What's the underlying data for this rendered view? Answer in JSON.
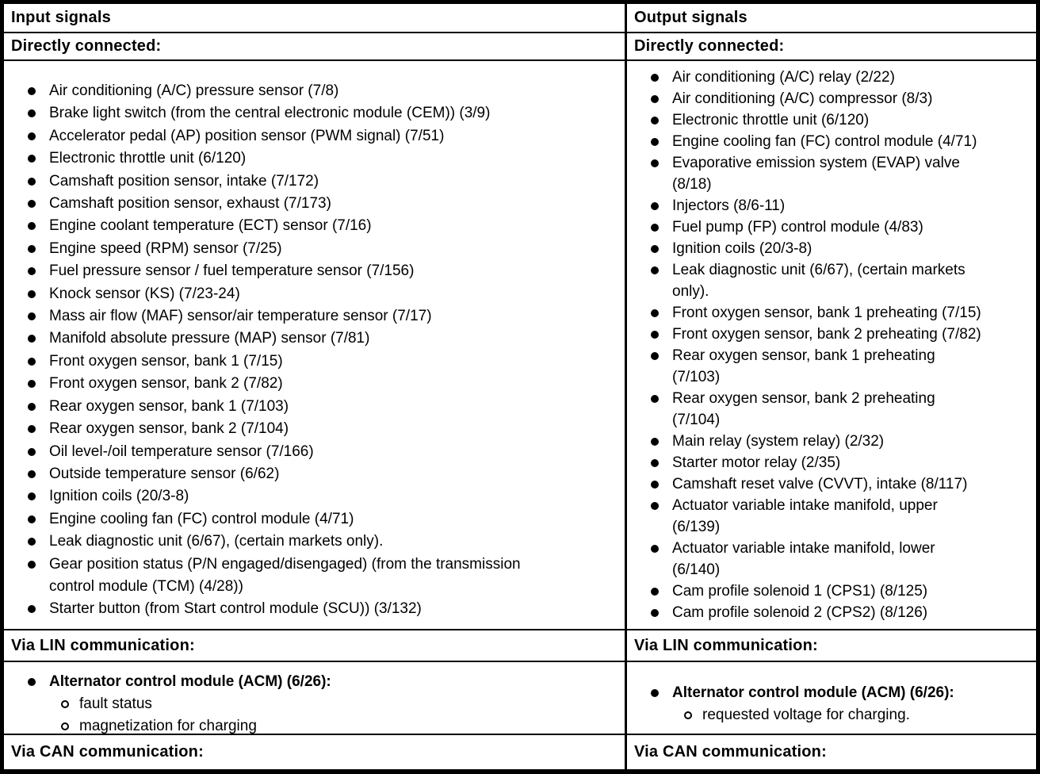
{
  "colors": {
    "text": "#000000",
    "background": "#ffffff",
    "border": "#000000"
  },
  "columns": [
    {
      "header": "Input signals",
      "sections": [
        {
          "heading": "Directly connected:",
          "items": [
            {
              "lines": [
                "Air conditioning (A/C) pressure sensor (7/8)"
              ]
            },
            {
              "lines": [
                "Brake light switch (from the central electronic module (CEM)) (3/9)"
              ]
            },
            {
              "lines": [
                "Accelerator pedal (AP) position sensor (PWM signal) (7/51)"
              ]
            },
            {
              "lines": [
                "Electronic throttle unit (6/120)"
              ]
            },
            {
              "lines": [
                "Camshaft position sensor, intake (7/172)"
              ]
            },
            {
              "lines": [
                "Camshaft position sensor, exhaust (7/173)"
              ]
            },
            {
              "lines": [
                "Engine coolant temperature (ECT) sensor (7/16)"
              ]
            },
            {
              "lines": [
                "Engine speed (RPM) sensor (7/25)"
              ]
            },
            {
              "lines": [
                "Fuel pressure sensor / fuel temperature sensor (7/156)"
              ]
            },
            {
              "lines": [
                "Knock sensor (KS) (7/23-24)"
              ]
            },
            {
              "lines": [
                "Mass air flow (MAF) sensor/air temperature sensor (7/17)"
              ]
            },
            {
              "lines": [
                "Manifold absolute pressure (MAP) sensor (7/81)"
              ]
            },
            {
              "lines": [
                "Front oxygen sensor, bank 1 (7/15)"
              ]
            },
            {
              "lines": [
                "Front oxygen sensor, bank 2 (7/82)"
              ]
            },
            {
              "lines": [
                "Rear oxygen sensor, bank 1 (7/103)"
              ]
            },
            {
              "lines": [
                "Rear oxygen sensor, bank 2 (7/104)"
              ]
            },
            {
              "lines": [
                "Oil level-/oil temperature sensor (7/166)"
              ]
            },
            {
              "lines": [
                "Outside temperature sensor (6/62)"
              ]
            },
            {
              "lines": [
                "Ignition coils (20/3-8)"
              ]
            },
            {
              "lines": [
                "Engine cooling fan (FC) control module (4/71)"
              ]
            },
            {
              "lines": [
                "Leak diagnostic unit (6/67), (certain markets only)."
              ]
            },
            {
              "lines": [
                "Gear position status (P/N engaged/disengaged) (from the transmission",
                "control module (TCM) (4/28))"
              ]
            },
            {
              "lines": [
                "Starter button (from Start control module (SCU)) (3/132)"
              ]
            }
          ]
        },
        {
          "heading": "Via LIN communication:",
          "items": [
            {
              "lines": [
                "Alternator control module (ACM) (6/26):"
              ],
              "bold": true,
              "sub": [
                {
                  "lines": [
                    "fault status"
                  ]
                },
                {
                  "lines": [
                    "magnetization for charging"
                  ]
                }
              ]
            }
          ]
        },
        {
          "heading": "Via CAN communication:",
          "items": []
        }
      ]
    },
    {
      "header": "Output signals",
      "sections": [
        {
          "heading": "Directly connected:",
          "items": [
            {
              "lines": [
                "Air conditioning (A/C) relay (2/22)"
              ]
            },
            {
              "lines": [
                "Air conditioning (A/C) compressor (8/3)"
              ]
            },
            {
              "lines": [
                "Electronic throttle unit (6/120)"
              ]
            },
            {
              "lines": [
                "Engine cooling fan (FC) control module (4/71)"
              ]
            },
            {
              "lines": [
                "Evaporative emission system (EVAP) valve",
                "(8/18)"
              ]
            },
            {
              "lines": [
                "Injectors (8/6-11)"
              ]
            },
            {
              "lines": [
                "Fuel pump (FP) control module (4/83)"
              ]
            },
            {
              "lines": [
                "Ignition coils (20/3-8)"
              ]
            },
            {
              "lines": [
                "Leak diagnostic unit (6/67), (certain markets",
                "only)."
              ]
            },
            {
              "lines": [
                "Front oxygen sensor, bank 1 preheating (7/15)"
              ]
            },
            {
              "lines": [
                "Front oxygen sensor, bank 2 preheating (7/82)"
              ]
            },
            {
              "lines": [
                "Rear oxygen sensor, bank 1 preheating",
                "(7/103)"
              ]
            },
            {
              "lines": [
                "Rear oxygen sensor, bank 2 preheating",
                "(7/104)"
              ]
            },
            {
              "lines": [
                "Main relay (system relay) (2/32)"
              ]
            },
            {
              "lines": [
                "Starter motor relay (2/35)"
              ]
            },
            {
              "lines": [
                "Camshaft reset valve (CVVT), intake (8/117)"
              ]
            },
            {
              "lines": [
                "Actuator variable intake manifold, upper",
                "(6/139)"
              ]
            },
            {
              "lines": [
                "Actuator variable intake manifold, lower",
                "(6/140)"
              ]
            },
            {
              "lines": [
                "Cam profile solenoid 1 (CPS1) (8/125)"
              ]
            },
            {
              "lines": [
                "Cam profile solenoid 2 (CPS2) (8/126)"
              ]
            }
          ]
        },
        {
          "heading": "Via LIN communication:",
          "items": [
            {
              "lines": [
                "Alternator control module (ACM) (6/26):"
              ],
              "bold": true,
              "sub": [
                {
                  "lines": [
                    "requested voltage for charging."
                  ]
                }
              ]
            }
          ]
        },
        {
          "heading": "Via CAN communication:",
          "items": []
        }
      ]
    }
  ]
}
